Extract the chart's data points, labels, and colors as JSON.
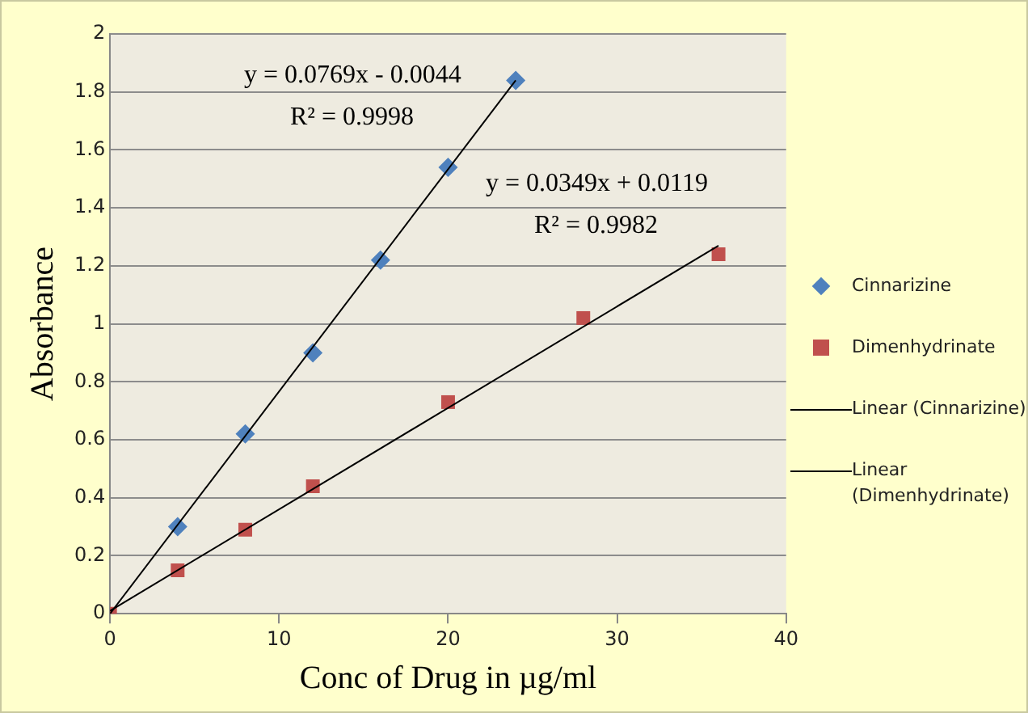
{
  "chart_data": {
    "type": "scatter",
    "xlabel": "Conc of Drug in µg/ml",
    "ylabel": "Absorbance",
    "xlim": [
      0,
      40
    ],
    "xticks": [
      0,
      10,
      20,
      30,
      40
    ],
    "ylim": [
      0,
      2
    ],
    "yticks": [
      0,
      0.2,
      0.4,
      0.6,
      0.8,
      1,
      1.2,
      1.4,
      1.6,
      1.8,
      2
    ],
    "grid": "y",
    "legend": "right",
    "series": [
      {
        "name": "Cinnarizine",
        "type": "scatter",
        "marker": "diamond",
        "color": "#4f81bd",
        "x": [
          4,
          8,
          12,
          16,
          20,
          24
        ],
        "values": [
          0.3,
          0.62,
          0.9,
          1.22,
          1.54,
          1.84
        ]
      },
      {
        "name": "Dimenhydrinate",
        "type": "scatter",
        "marker": "square",
        "color": "#c0504d",
        "x": [
          0,
          4,
          8,
          12,
          20,
          28,
          36
        ],
        "values": [
          0,
          0.15,
          0.29,
          0.44,
          0.73,
          1.02,
          1.24
        ]
      },
      {
        "name": "Linear (Cinnarizine)",
        "type": "line",
        "marker": "none",
        "line_style": "solid",
        "color": "#000000",
        "x": [
          0,
          24
        ],
        "values": [
          0,
          1.84
        ]
      },
      {
        "name": "Linear (Dimenhydrinate)",
        "type": "line",
        "marker": "none",
        "line_style": "solid",
        "color": "#000000",
        "x": [
          0,
          36
        ],
        "values": [
          0.01,
          1.27
        ]
      }
    ],
    "annotations": [
      "y = 0.0769x - 0.0044",
      "R² = 0.9998",
      "y = 0.0349x + 0.0119",
      "R² = 0.9982"
    ]
  }
}
